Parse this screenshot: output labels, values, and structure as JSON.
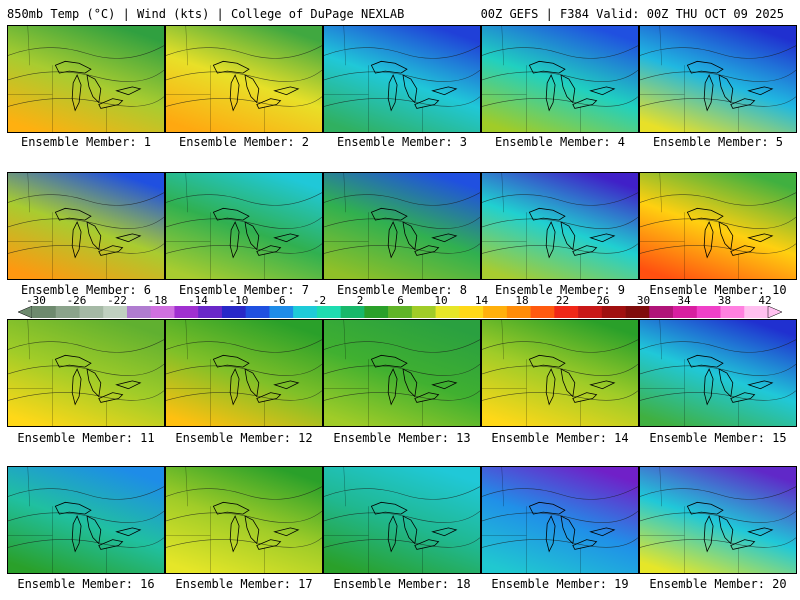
{
  "header": {
    "left": "850mb Temp (°C) | Wind (kts) | College of DuPage NEXLAB",
    "right": "00Z GEFS | F384 Valid: 00Z THU OCT 09 2025"
  },
  "colorbar": {
    "ticks": [
      "-30",
      "-26",
      "-22",
      "-18",
      "-14",
      "-10",
      "-6",
      "-2",
      "2",
      "6",
      "10",
      "14",
      "18",
      "22",
      "26",
      "30",
      "34",
      "38",
      "42"
    ],
    "colors": [
      "#6e8a6e",
      "#8ba38b",
      "#a5b9a5",
      "#c0d0c0",
      "#b07cd0",
      "#d070e0",
      "#a030d0",
      "#6a28c8",
      "#2828c8",
      "#2050e0",
      "#1e8ce8",
      "#1ecbd8",
      "#1edcb0",
      "#18b86a",
      "#2aa02a",
      "#60b428",
      "#a0cc28",
      "#e6e628",
      "#ffd818",
      "#ffb00c",
      "#ff8c08",
      "#ff5a10",
      "#f02818",
      "#c81818",
      "#a01010",
      "#800c0c",
      "#b01478",
      "#d81ea0",
      "#f040c8",
      "#ff80e0",
      "#ffc0f0"
    ]
  },
  "members": [
    {
      "caption": "Ensemble Member: 1",
      "grad": [
        "#30a040",
        "#a8cc30",
        "#ffb010"
      ]
    },
    {
      "caption": "Ensemble Member: 2",
      "grad": [
        "#40a840",
        "#e8e028",
        "#ffa810"
      ]
    },
    {
      "caption": "Ensemble Member: 3",
      "grad": [
        "#2040d8",
        "#20c8d8",
        "#30b060"
      ]
    },
    {
      "caption": "Ensemble Member: 4",
      "grad": [
        "#2050e0",
        "#20d0c0",
        "#a0cc28"
      ]
    },
    {
      "caption": "Ensemble Member: 5",
      "grad": [
        "#2030d0",
        "#20b8e0",
        "#e8e028"
      ]
    },
    {
      "caption": "Ensemble Member: 6",
      "grad": [
        "#2050e0",
        "#a8cc30",
        "#ff9810"
      ]
    },
    {
      "caption": "Ensemble Member: 7",
      "grad": [
        "#20c8d8",
        "#30b050",
        "#a8cc30"
      ]
    },
    {
      "caption": "Ensemble Member: 8",
      "grad": [
        "#2050e0",
        "#30b050",
        "#90c028"
      ]
    },
    {
      "caption": "Ensemble Member: 9",
      "grad": [
        "#4020c8",
        "#20d0d0",
        "#a8cc30"
      ]
    },
    {
      "caption": "Ensemble Member: 10",
      "grad": [
        "#40b040",
        "#ffd010",
        "#ff5010"
      ]
    },
    {
      "caption": "Ensemble Member: 11",
      "grad": [
        "#60b030",
        "#a0cc28",
        "#ffd818"
      ]
    },
    {
      "caption": "Ensemble Member: 12",
      "grad": [
        "#2aa02a",
        "#80c028",
        "#ffc010"
      ]
    },
    {
      "caption": "Ensemble Member: 13",
      "grad": [
        "#2aa040",
        "#40b030",
        "#a0cc28"
      ]
    },
    {
      "caption": "Ensemble Member: 14",
      "grad": [
        "#2aa02a",
        "#a0cc28",
        "#ffd818"
      ]
    },
    {
      "caption": "Ensemble Member: 15",
      "grad": [
        "#2030d0",
        "#20c8d8",
        "#40b040"
      ]
    },
    {
      "caption": "Ensemble Member: 16",
      "grad": [
        "#1e8ce8",
        "#20c0a0",
        "#2aa02a"
      ]
    },
    {
      "caption": "Ensemble Member: 17",
      "grad": [
        "#2aa02a",
        "#a0cc28",
        "#e6e628"
      ]
    },
    {
      "caption": "Ensemble Member: 18",
      "grad": [
        "#20c8d8",
        "#20b890",
        "#2aa02a"
      ]
    },
    {
      "caption": "Ensemble Member: 19",
      "grad": [
        "#7020c8",
        "#2090e8",
        "#20c8d0"
      ]
    },
    {
      "caption": "Ensemble Member: 20",
      "grad": [
        "#6028c8",
        "#20c8d8",
        "#e6e628"
      ]
    }
  ]
}
